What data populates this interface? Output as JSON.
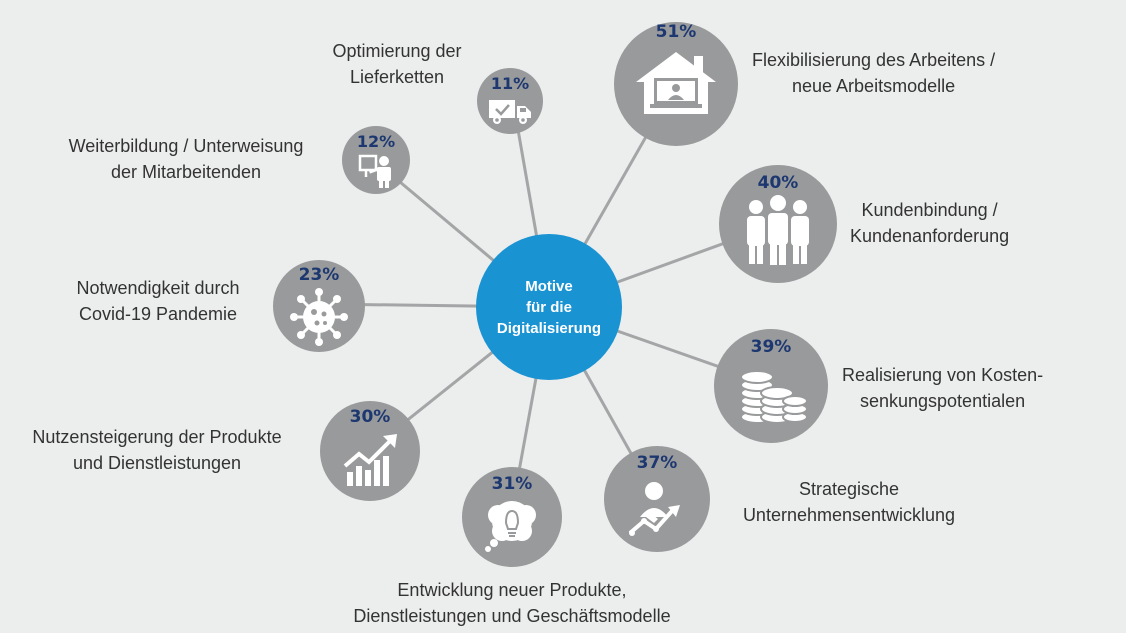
{
  "center": {
    "line1": "Motive",
    "line2": "für die",
    "line3": "Digitalisierung"
  },
  "motives": [
    {
      "pct": "51%",
      "label": [
        "Flexibilisierung des Arbeitens /",
        "neue Arbeitsmodelle"
      ],
      "icon": "home-office-icon"
    },
    {
      "pct": "40%",
      "label": [
        "Kundenbindung /",
        "Kundenanforderung"
      ],
      "icon": "people-group-icon"
    },
    {
      "pct": "39%",
      "label": [
        "Realisierung von Kosten-",
        "senkungspotentialen"
      ],
      "icon": "coins-icon"
    },
    {
      "pct": "37%",
      "label": [
        "Strategische",
        "Unternehmensentwicklung"
      ],
      "icon": "growth-person-icon"
    },
    {
      "pct": "31%",
      "label": [
        "Entwicklung neuer Produkte,",
        "Dienstleistungen und Geschäftsmodelle"
      ],
      "icon": "idea-bulb-icon"
    },
    {
      "pct": "30%",
      "label": [
        "Nutzensteigerung der Produkte",
        "und Dienstleistungen"
      ],
      "icon": "rising-chart-icon"
    },
    {
      "pct": "23%",
      "label": [
        "Notwendigkeit durch",
        "Covid-19 Pandemie"
      ],
      "icon": "virus-icon"
    },
    {
      "pct": "12%",
      "label": [
        "Weiterbildung / Unterweisung",
        "der Mitarbeitenden"
      ],
      "icon": "presenter-icon"
    },
    {
      "pct": "11%",
      "label": [
        "Optimierung der",
        "Lieferketten"
      ],
      "icon": "delivery-truck-icon"
    }
  ],
  "colors": {
    "background": "#eceded",
    "hub": "#1a93d3",
    "node": "#989a9b",
    "percent": "#1d3770",
    "connector": "#a3a5a6"
  }
}
